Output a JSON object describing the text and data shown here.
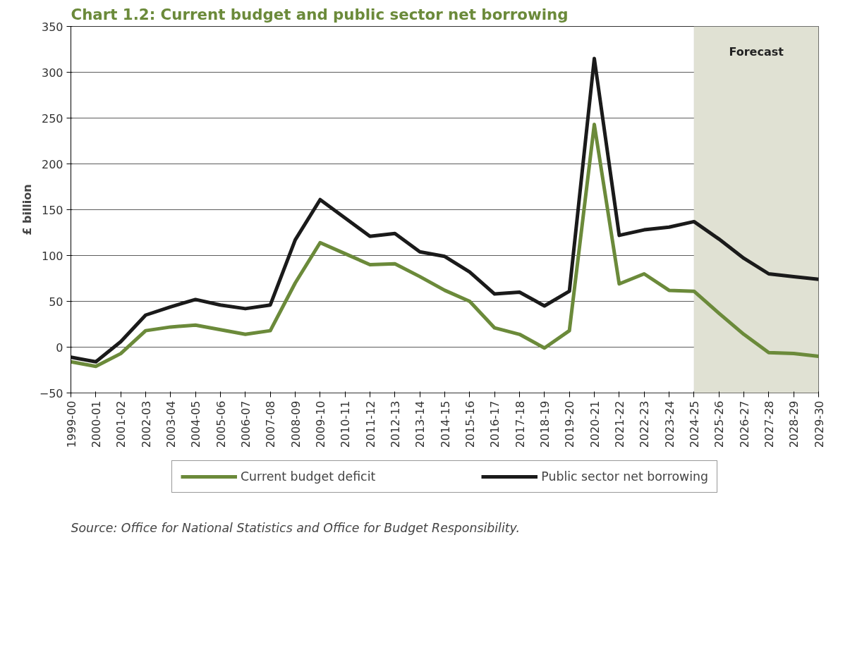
{
  "chart_data": {
    "type": "line",
    "title": "Chart 1.2: Current budget and public sector net borrowing",
    "ylabel": "£ billion",
    "categories": [
      "1999-00",
      "2000-01",
      "2001-02",
      "2002-03",
      "2003-04",
      "2004-05",
      "2005-06",
      "2006-07",
      "2007-08",
      "2008-09",
      "2009-10",
      "2010-11",
      "2011-12",
      "2012-13",
      "2013-14",
      "2014-15",
      "2015-16",
      "2016-17",
      "2017-18",
      "2018-19",
      "2019-20",
      "2020-21",
      "2021-22",
      "2022-23",
      "2023-24",
      "2024-25",
      "2025-26",
      "2026-27",
      "2027-28",
      "2028-29",
      "2029-30"
    ],
    "series": [
      {
        "name": "Current budget deficit",
        "color": "#6b8a3a",
        "values": [
          -16,
          -21,
          -7,
          18,
          22,
          24,
          19,
          14,
          18,
          70,
          114,
          102,
          90,
          91,
          77,
          62,
          50,
          21,
          14,
          -1,
          18,
          243,
          69,
          80,
          62,
          61,
          37,
          14,
          -6,
          -7,
          -10
        ]
      },
      {
        "name": "Public sector net borrowing",
        "color": "#1a1a1a",
        "values": [
          -11,
          -16,
          6,
          35,
          44,
          52,
          46,
          42,
          46,
          117,
          161,
          141,
          121,
          124,
          104,
          99,
          82,
          58,
          60,
          45,
          61,
          315,
          122,
          128,
          131,
          137,
          118,
          97,
          80,
          77,
          74
        ]
      }
    ],
    "ylim": [
      -50,
      350
    ],
    "yticks": [
      -50,
      0,
      50,
      100,
      150,
      200,
      250,
      300,
      350
    ],
    "grid": "y",
    "legend": "bottom",
    "marker": "none",
    "line_style": "solid",
    "bands": [
      {
        "axis": "x",
        "from": "2024-25",
        "to": "2029-30",
        "label": "Forecast",
        "color": "#e0e1d3"
      }
    ],
    "annotations": [
      "Source: Office for National Statistics and Office for Budget Responsibility."
    ]
  }
}
